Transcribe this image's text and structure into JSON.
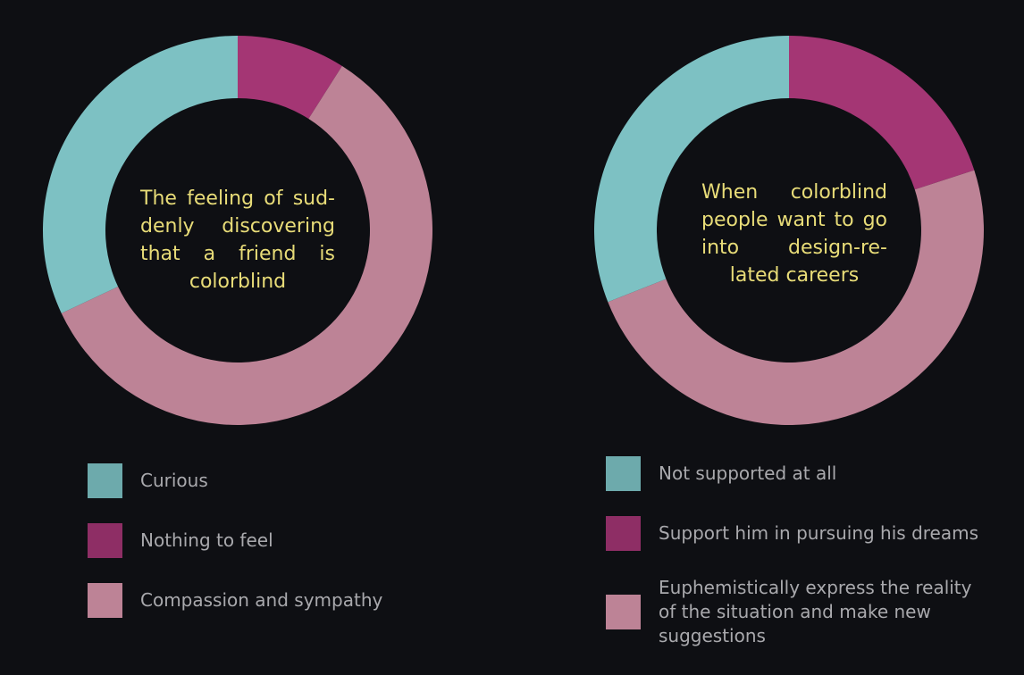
{
  "colors": {
    "background": "#0e0f13",
    "title_text": "#e8dc78",
    "legend_text": "#a9a9ad"
  },
  "chart_data": [
    {
      "type": "pie",
      "title": "The feeling of sud-denly discovering that a friend is colorblind",
      "categories": [
        "Curious",
        "Nothing to feel",
        "Compassion and sympathy"
      ],
      "values": [
        32,
        9,
        59
      ],
      "colors": [
        "#7dc1c3",
        "#a43674",
        "#bd8396"
      ],
      "legend_colors": [
        "#6daaac",
        "#8e2e65",
        "#bd8396"
      ],
      "legend_placement": "bottom"
    },
    {
      "type": "pie",
      "title": "When colorblind people want to go into design-re-lated careers",
      "categories": [
        "Not supported at all",
        "Support him in pursuing his dreams",
        "Euphemistically express the reality of the situation and make new suggestions"
      ],
      "values": [
        31,
        20,
        49
      ],
      "colors": [
        "#7dc1c3",
        "#a43674",
        "#bd8396"
      ],
      "legend_colors": [
        "#6daaac",
        "#8e2e65",
        "#bd8396"
      ],
      "legend_placement": "bottom"
    }
  ]
}
